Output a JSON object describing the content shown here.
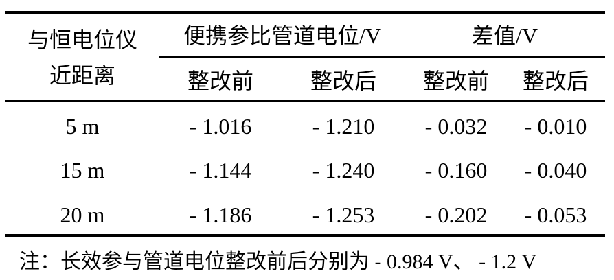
{
  "table": {
    "header": {
      "row_header": [
        "与恒电位仪",
        "近距离"
      ],
      "group1": "便携参比管道电位/V",
      "group2": "差值/V",
      "subheaders": [
        "整改前",
        "整改后",
        "整改前",
        "整改后"
      ]
    },
    "rows": [
      {
        "distance": "5 m",
        "values": [
          "- 1.016",
          "- 1.210",
          "- 0.032",
          "- 0.010"
        ]
      },
      {
        "distance": "15 m",
        "values": [
          "- 1.144",
          "- 1.240",
          "- 0.160",
          "- 0.040"
        ]
      },
      {
        "distance": "20 m",
        "values": [
          "- 1.186",
          "- 1.253",
          "- 0.202",
          "- 0.053"
        ]
      }
    ],
    "note": "注：长效参与管道电位整改前后分别为 - 0.984 V、 - 1.2 V"
  }
}
